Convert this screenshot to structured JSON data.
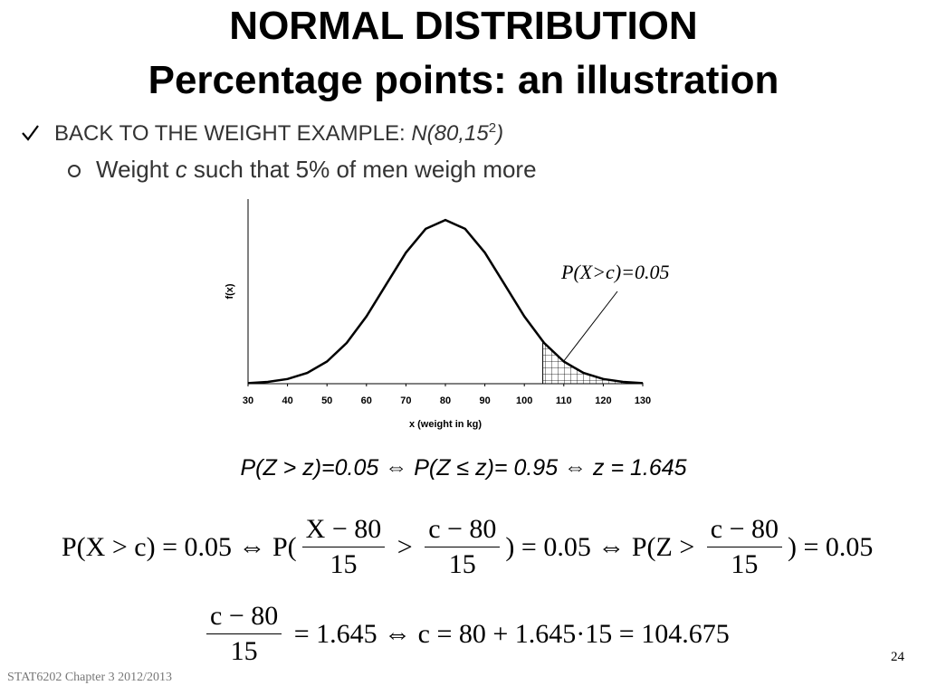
{
  "title": [
    "NORMAL DISTRIBUTION",
    "Percentage points: an illustration"
  ],
  "bullet": {
    "text": "BACK TO THE WEIGHT EXAMPLE: ",
    "dist": "N(80,15",
    "sup": "2",
    "close": ")"
  },
  "sub_bullet": {
    "pre": "Weight ",
    "var": "c",
    "post": " such that 5% of men weigh more"
  },
  "chart_data": {
    "type": "line",
    "x": [
      30,
      35,
      40,
      45,
      50,
      55,
      60,
      65,
      70,
      75,
      80,
      85,
      90,
      95,
      100,
      105,
      110,
      115,
      120,
      125,
      130
    ],
    "values": [
      0.0001,
      0.0003,
      0.00076,
      0.00175,
      0.0036,
      0.00663,
      0.01093,
      0.01613,
      0.0213,
      0.02516,
      0.0266,
      0.02516,
      0.0213,
      0.01613,
      0.01093,
      0.00663,
      0.0036,
      0.00175,
      0.00076,
      0.0003,
      0.0001
    ],
    "color": "#000000",
    "xlim": [
      30,
      130
    ],
    "xticks": [
      30,
      40,
      50,
      60,
      70,
      80,
      90,
      100,
      110,
      120,
      130
    ],
    "ylim": [
      0,
      0.03
    ],
    "xlabel": "x (weight in kg)",
    "ylabel": "f(x)",
    "shade_from": 104.675,
    "annotation": "P(X>c)=0.05"
  },
  "z_line": "P(Z > z)=0.05 ⇔ P(Z ≤ z)= 0.95 ⇔ z = 1.645",
  "equations": [
    [
      "P(X > c) = 0.05 ⇔ P(",
      {
        "num": "X − 80",
        "den": "15"
      },
      " > ",
      {
        "num": "c − 80",
        "den": "15"
      },
      ") = 0.05 ⇔ P(Z > ",
      {
        "num": "c − 80",
        "den": "15"
      },
      ") = 0.05"
    ],
    [
      {
        "num": "c − 80",
        "den": "15"
      },
      " = 1.645 ⇔ c = 80 + 1.645·15 = 104.675"
    ]
  ],
  "page_number": "24",
  "footer": "STAT6202  Chapter 3 2012/2013"
}
